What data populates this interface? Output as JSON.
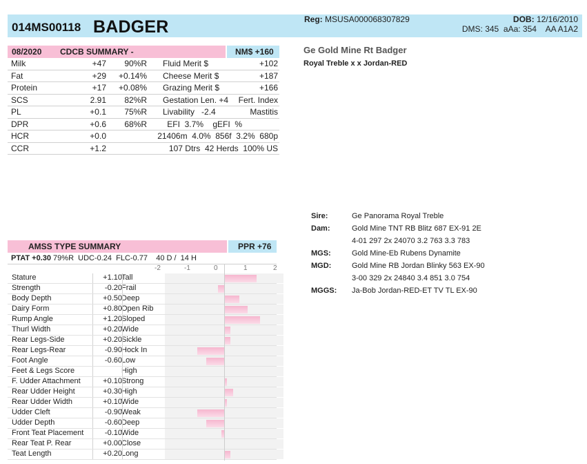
{
  "header": {
    "id": "014MS00118",
    "name": "BADGER",
    "reg_label": "Reg:",
    "reg_value": "MSUSA000068307829",
    "dob_label": "DOB:",
    "dob_value": "12/16/2010",
    "dms_line": "DMS: 345  aAa: 354    AA A1A2"
  },
  "animal": {
    "full_name": "Ge Gold Mine Rt Badger",
    "pedigree_line": "Royal Treble x x Jordan-RED"
  },
  "cdcb": {
    "date": "08/2020",
    "title": "CDCB SUMMARY -",
    "nm": "NM$ +160",
    "rows": [
      {
        "trait": "Milk",
        "val": "+47",
        "rel": "90%R",
        "idx": "Fluid Merit $",
        "idx_val": "+102"
      },
      {
        "trait": "Fat",
        "val": "+29",
        "rel": "+0.14%",
        "idx": "Cheese Merit $",
        "idx_val": "+187"
      },
      {
        "trait": "Protein",
        "val": "+17",
        "rel": "+0.08%",
        "idx": "Grazing Merit $",
        "idx_val": "+166"
      },
      {
        "trait": "SCS",
        "val": "2.91",
        "rel": "82%R",
        "idx": "Gestation Len. +4",
        "idx_val": "Fert. Index"
      },
      {
        "trait": "PL",
        "val": "+0.1",
        "rel": "75%R",
        "idx": "Livability   -2.4",
        "idx_val": "Mastitis"
      },
      {
        "trait": "DPR",
        "val": "+0.6",
        "rel": "68%R",
        "idx": "EFI  3.7%    gEFI  %",
        "idx_val": ""
      },
      {
        "trait": "HCR",
        "val": "+0.0",
        "rel": "",
        "idx": "21406m  4.0%  856f  3.2%  680p",
        "idx_val": ""
      },
      {
        "trait": "CCR",
        "val": "+1.2",
        "rel": "",
        "idx": "107 Dtrs  42 Herds  100% US",
        "idx_val": ""
      }
    ]
  },
  "amss": {
    "title": "AMSS TYPE SUMMARY",
    "ppr": "PPR +76",
    "ptat_label": "PTAT +0.30",
    "ptat_rest": "79%R  UDC-0.24  FLC-0.77    40 D /  14 H",
    "axis": [
      "-2",
      "-1",
      "0",
      "1",
      "2"
    ],
    "axis_min": -2,
    "axis_max": 2,
    "traits": [
      {
        "name": "Stature",
        "val": "+1.10",
        "desc": "Tall",
        "v": 1.1
      },
      {
        "name": "Strength",
        "val": "-0.20",
        "desc": "Frail",
        "v": -0.2
      },
      {
        "name": "Body Depth",
        "val": "+0.50",
        "desc": "Deep",
        "v": 0.5
      },
      {
        "name": "Dairy Form",
        "val": "+0.80",
        "desc": "Open Rib",
        "v": 0.8
      },
      {
        "name": "Rump Angle",
        "val": "+1.20",
        "desc": "Sloped",
        "v": 1.2
      },
      {
        "name": "Thurl Width",
        "val": "+0.20",
        "desc": "Wide",
        "v": 0.2
      },
      {
        "name": "Rear Legs-Side",
        "val": "+0.20",
        "desc": "Sickle",
        "v": 0.2
      },
      {
        "name": "Rear Legs-Rear",
        "val": "-0.90",
        "desc": "Hock In",
        "v": -0.9
      },
      {
        "name": "Foot Angle",
        "val": "-0.60",
        "desc": "Low",
        "v": -0.6
      },
      {
        "name": "Feet & Legs Score",
        "val": "",
        "desc": "High",
        "v": 0
      },
      {
        "name": "F. Udder Attachment",
        "val": "+0.10",
        "desc": "Strong",
        "v": 0.1
      },
      {
        "name": "Rear Udder Height",
        "val": "+0.30",
        "desc": "High",
        "v": 0.3
      },
      {
        "name": "Rear Udder Width",
        "val": "+0.10",
        "desc": "Wide",
        "v": 0.1
      },
      {
        "name": "Udder Cleft",
        "val": "-0.90",
        "desc": "Weak",
        "v": -0.9
      },
      {
        "name": "Udder Depth",
        "val": "-0.60",
        "desc": "Deep",
        "v": -0.6
      },
      {
        "name": "Front Teat Placement",
        "val": "-0.10",
        "desc": "Wide",
        "v": -0.1
      },
      {
        "name": "Rear Teat P. Rear",
        "val": "+0.00",
        "desc": "Close",
        "v": 0
      },
      {
        "name": "Teat Length",
        "val": "+0.20",
        "desc": "Long",
        "v": 0.2
      }
    ]
  },
  "pedigree": [
    {
      "label": "Sire:",
      "lines": [
        "Ge Panorama Royal Treble"
      ]
    },
    {
      "label": "Dam:",
      "lines": [
        "Gold Mine TNT RB Blitz 687 EX-91 2E",
        "4-01 297 2x 24070 3.2 763 3.3 783"
      ]
    },
    {
      "label": "MGS:",
      "lines": [
        "Gold Mine-Eb Rubens Dynamite"
      ]
    },
    {
      "label": "MGD:",
      "lines": [
        "Gold Mine RB Jordan Blinky 563 EX-90",
        "3-00 329 2x 24840 3.4 851 3.0 754"
      ]
    },
    {
      "label": "MGGS:",
      "lines": [
        "Ja-Bob Jordan-RED-ET TV TL EX-90"
      ]
    }
  ],
  "colors": {
    "pink": "#f8bfd6",
    "blue": "#bfe6f5",
    "bar": "#f6b7cf"
  }
}
